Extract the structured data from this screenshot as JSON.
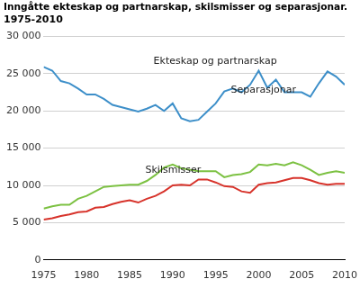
{
  "chart_data": {
    "type": "line",
    "title": [
      "Inngåtte ekteskap og partnarskap, skilsmisser og separasjonar.",
      "1975-2010"
    ],
    "x": [
      1975,
      1976,
      1977,
      1978,
      1979,
      1980,
      1981,
      1982,
      1983,
      1984,
      1985,
      1986,
      1987,
      1988,
      1989,
      1990,
      1991,
      1992,
      1993,
      1994,
      1995,
      1996,
      1997,
      1998,
      1999,
      2000,
      2001,
      2002,
      2003,
      2004,
      2005,
      2006,
      2007,
      2008,
      2009,
      2010
    ],
    "series": [
      {
        "name": "Ekteskap og partnarskap",
        "color": "#3d8fc9",
        "values": [
          25900,
          25400,
          24000,
          23700,
          23000,
          22200,
          22200,
          21600,
          20800,
          20500,
          20200,
          19900,
          20300,
          20800,
          20000,
          21000,
          19000,
          18600,
          18800,
          19900,
          21000,
          22600,
          23000,
          22500,
          23500,
          25400,
          23100,
          24200,
          22500,
          22500,
          22500,
          21900,
          23700,
          25300,
          24600,
          23500
        ]
      },
      {
        "name": "Separasjonar",
        "color": "#7cc142",
        "values": [
          6900,
          7200,
          7400,
          7400,
          8200,
          8600,
          9200,
          9800,
          9900,
          10000,
          10100,
          10100,
          10600,
          11400,
          12400,
          12800,
          12300,
          12100,
          11900,
          11900,
          11900,
          11100,
          11400,
          11500,
          11800,
          12800,
          12700,
          12900,
          12700,
          13100,
          12700,
          12100,
          11400,
          11700,
          11900,
          11700
        ]
      },
      {
        "name": "Skilsmisser",
        "color": "#d7332b",
        "values": [
          5400,
          5600,
          5900,
          6100,
          6400,
          6500,
          7000,
          7100,
          7500,
          7800,
          8000,
          7700,
          8200,
          8600,
          9200,
          10000,
          10100,
          10000,
          10800,
          10800,
          10400,
          9900,
          9800,
          9200,
          9000,
          10100,
          10300,
          10400,
          10700,
          11000,
          11000,
          10700,
          10300,
          10100,
          10200,
          10200
        ]
      }
    ],
    "xlim": [
      1975,
      2010
    ],
    "xticks": [
      1975,
      1980,
      1985,
      1990,
      1995,
      2000,
      2005,
      2010
    ],
    "ylim": [
      0,
      30000
    ],
    "yticks": [
      0,
      {
        "value": 5000,
        "label": "5 000"
      },
      {
        "value": 10000,
        "label": "10 000"
      },
      {
        "value": 15000,
        "label": "15 000"
      },
      {
        "value": 20000,
        "label": "20 000"
      },
      {
        "value": 25000,
        "label": "25 000"
      },
      {
        "value": 30000,
        "label": "30 000"
      }
    ],
    "grid": true
  }
}
